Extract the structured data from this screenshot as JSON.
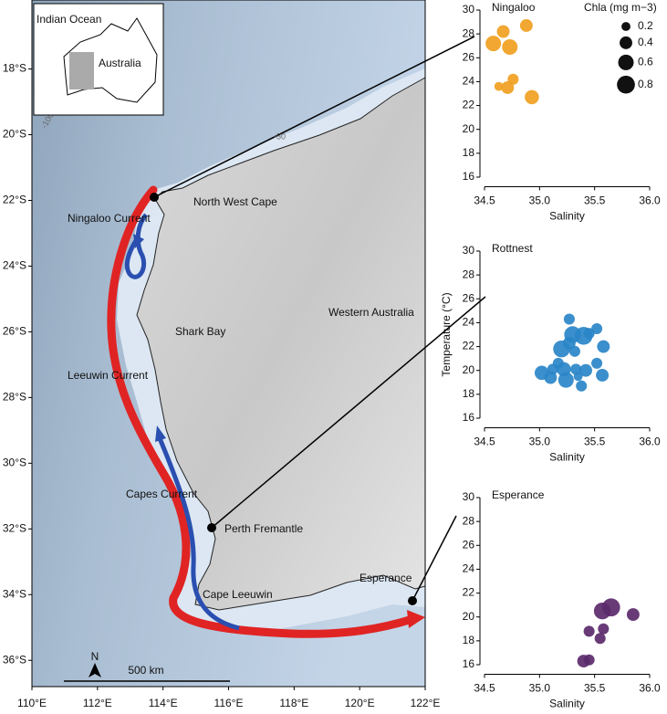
{
  "map": {
    "xlim": [
      110,
      122
    ],
    "ylim": [
      -36.8,
      -15.9
    ],
    "xticks": [
      {
        "value": 110,
        "label": "110°E"
      },
      {
        "value": 112,
        "label": "112°E"
      },
      {
        "value": 114,
        "label": "114°E"
      },
      {
        "value": 116,
        "label": "116°E"
      },
      {
        "value": 118,
        "label": "118°E"
      },
      {
        "value": 120,
        "label": "120°E"
      },
      {
        "value": 122,
        "label": "122°E"
      }
    ],
    "yticks": [
      {
        "value": -18,
        "label": "18°S"
      },
      {
        "value": -20,
        "label": "20°S"
      },
      {
        "value": -22,
        "label": "22°S"
      },
      {
        "value": -24,
        "label": "24°S"
      },
      {
        "value": -26,
        "label": "26°S"
      },
      {
        "value": -28,
        "label": "28°S"
      },
      {
        "value": -30,
        "label": "30°S"
      },
      {
        "value": -32,
        "label": "32°S"
      },
      {
        "value": -34,
        "label": "34°S"
      },
      {
        "value": -36,
        "label": "36°S"
      }
    ],
    "inset": {
      "ocean": "Indian Ocean",
      "land": "Australia"
    },
    "labels": {
      "north_west_cape": "North West Cape",
      "ningaloo_current": "Ningaloo Current",
      "shark_bay": "Shark Bay",
      "western_australia": "Western Australia",
      "leeuwin_current": "Leeuwin Current",
      "capes_current": "Capes Current",
      "perth": "Perth Fremantle",
      "cape_leeuwin": "Cape Leeuwin",
      "esperance": "Esperance"
    },
    "contours": [
      "-100",
      "-50"
    ],
    "north": "N",
    "scale": "500 km"
  },
  "chart_data": [
    {
      "type": "scatter",
      "title": "Ningaloo",
      "xlabel": "Salinity",
      "color": "#f0a020",
      "x": [
        34.58,
        34.67,
        34.73,
        34.88,
        34.76,
        34.63,
        34.71,
        34.93
      ],
      "values": [
        27.2,
        28.2,
        26.9,
        28.7,
        24.2,
        23.6,
        23.5,
        22.7
      ],
      "sizes": [
        0.6,
        0.4,
        0.6,
        0.4,
        0.3,
        0.2,
        0.4,
        0.5
      ],
      "xlim": [
        34.5,
        36.0
      ],
      "ylim": [
        15.2,
        30
      ],
      "xticks": [
        34.5,
        {
          "value": 35,
          "label": "35.0"
        },
        35.5,
        {
          "value": 36,
          "label": "36.0"
        }
      ],
      "yticks": [
        16,
        18,
        20,
        22,
        24,
        26,
        28,
        30
      ],
      "size_legend": {
        "title": "Chla (mg m−3)",
        "values": [
          0.2,
          0.4,
          0.6,
          0.8
        ]
      }
    },
    {
      "type": "scatter",
      "title": "Rottnest",
      "xlabel": "Salinity",
      "ylabel": "Temperature (°C)",
      "color": "#2a86c8",
      "x": [
        35.02,
        35.1,
        35.12,
        35.17,
        35.2,
        35.22,
        35.24,
        35.27,
        35.27,
        35.3,
        35.32,
        35.33,
        35.35,
        35.38,
        35.4,
        35.42,
        35.45,
        35.52,
        35.52,
        35.58,
        35.57
      ],
      "values": [
        19.8,
        19.4,
        20.1,
        20.6,
        21.8,
        20.1,
        19.2,
        22.3,
        24.3,
        23.0,
        21.6,
        20.1,
        19.5,
        18.7,
        22.9,
        20.0,
        23.1,
        23.5,
        20.6,
        22.0,
        19.6
      ],
      "sizes": [
        0.5,
        0.4,
        0.3,
        0.3,
        0.7,
        0.5,
        0.6,
        0.4,
        0.3,
        0.7,
        0.3,
        0.3,
        0.2,
        0.3,
        0.8,
        0.4,
        0.3,
        0.3,
        0.3,
        0.4,
        0.4
      ],
      "xlim": [
        34.5,
        36.0
      ],
      "ylim": [
        15.2,
        30
      ],
      "xticks": [
        34.5,
        {
          "value": 35,
          "label": "35.0"
        },
        35.5,
        {
          "value": 36,
          "label": "36.0"
        }
      ],
      "yticks": [
        16,
        18,
        20,
        22,
        24,
        26,
        28,
        30
      ]
    },
    {
      "type": "scatter",
      "title": "Esperance",
      "xlabel": "Salinity",
      "color": "#5b2a6b",
      "x": [
        35.4,
        35.45,
        35.45,
        35.55,
        35.58,
        35.57,
        35.65,
        35.85
      ],
      "values": [
        16.3,
        16.4,
        18.8,
        18.2,
        19.0,
        20.5,
        20.8,
        20.2
      ],
      "sizes": [
        0.4,
        0.3,
        0.3,
        0.3,
        0.3,
        0.7,
        0.8,
        0.4
      ],
      "xlim": [
        34.5,
        36.0
      ],
      "ylim": [
        15.2,
        30
      ],
      "xticks": [
        34.5,
        {
          "value": 35,
          "label": "35.0"
        },
        35.5,
        {
          "value": 36,
          "label": "36.0"
        }
      ],
      "yticks": [
        16,
        18,
        20,
        22,
        24,
        26,
        28,
        30
      ]
    }
  ]
}
